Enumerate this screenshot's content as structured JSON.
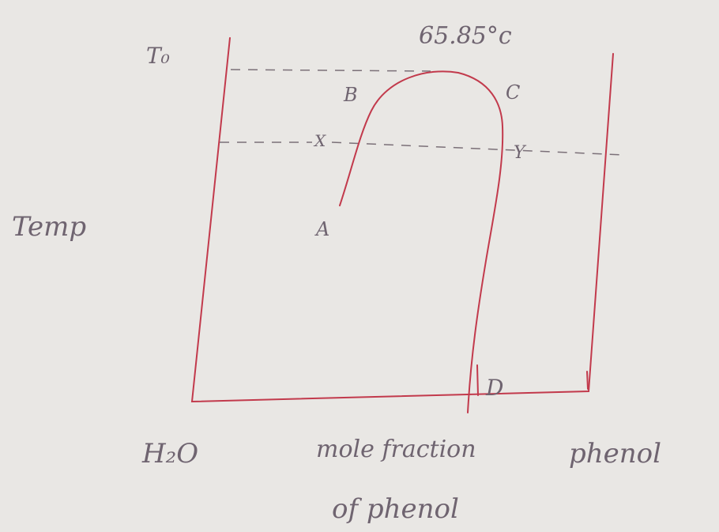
{
  "title": "65.85°c",
  "axis": {
    "y_label": "Temp",
    "t0": "T₀",
    "left": "H₂O",
    "right": "phenol",
    "x_label": [
      "mole fraction",
      "of phenol"
    ]
  },
  "points": {
    "a": "A",
    "b": "B",
    "c": "C",
    "d": "D",
    "x": "X",
    "y": "Y"
  }
}
